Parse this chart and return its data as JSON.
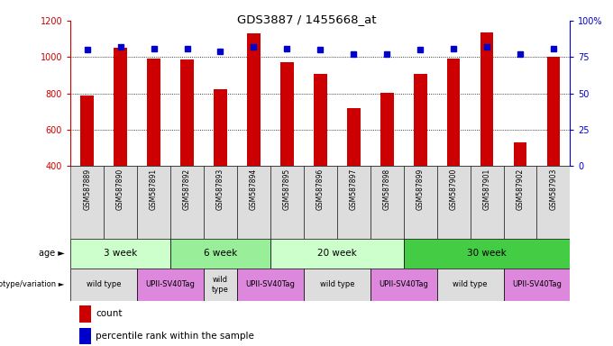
{
  "title": "GDS3887 / 1455668_at",
  "samples": [
    "GSM587889",
    "GSM587890",
    "GSM587891",
    "GSM587892",
    "GSM587893",
    "GSM587894",
    "GSM587895",
    "GSM587896",
    "GSM587897",
    "GSM587898",
    "GSM587899",
    "GSM587900",
    "GSM587901",
    "GSM587902",
    "GSM587903"
  ],
  "counts": [
    790,
    1050,
    990,
    985,
    825,
    1130,
    970,
    910,
    720,
    805,
    910,
    990,
    1135,
    530,
    1000
  ],
  "percentile_ranks": [
    80,
    82,
    81,
    81,
    79,
    82,
    81,
    80,
    77,
    77,
    80,
    81,
    82,
    77,
    81
  ],
  "ylim_left": [
    400,
    1200
  ],
  "ylim_right": [
    0,
    100
  ],
  "yticks_left": [
    400,
    600,
    800,
    1000,
    1200
  ],
  "yticks_right": [
    0,
    25,
    50,
    75,
    100
  ],
  "ytick_labels_right": [
    "0",
    "25",
    "50",
    "75",
    "100%"
  ],
  "bar_color": "#CC0000",
  "dot_color": "#0000CC",
  "age_groups": [
    {
      "label": "3 week",
      "start": 0,
      "end": 3,
      "color": "#CCFFCC"
    },
    {
      "label": "6 week",
      "start": 3,
      "end": 6,
      "color": "#99EE99"
    },
    {
      "label": "20 week",
      "start": 6,
      "end": 10,
      "color": "#CCFFCC"
    },
    {
      "label": "30 week",
      "start": 10,
      "end": 15,
      "color": "#44CC44"
    }
  ],
  "genotype_groups": [
    {
      "label": "wild type",
      "start": 0,
      "end": 2,
      "color": "#DDDDDD"
    },
    {
      "label": "UPII-SV40Tag",
      "start": 2,
      "end": 4,
      "color": "#DD88DD"
    },
    {
      "label": "wild\ntype",
      "start": 4,
      "end": 5,
      "color": "#DDDDDD"
    },
    {
      "label": "UPII-SV40Tag",
      "start": 5,
      "end": 7,
      "color": "#DD88DD"
    },
    {
      "label": "wild type",
      "start": 7,
      "end": 9,
      "color": "#DDDDDD"
    },
    {
      "label": "UPII-SV40Tag",
      "start": 9,
      "end": 11,
      "color": "#DD88DD"
    },
    {
      "label": "wild type",
      "start": 11,
      "end": 13,
      "color": "#DDDDDD"
    },
    {
      "label": "UPII-SV40Tag",
      "start": 13,
      "end": 15,
      "color": "#DD88DD"
    }
  ],
  "legend_count_label": "count",
  "legend_percentile_label": "percentile rank within the sample",
  "age_label": "age",
  "genotype_label": "genotype/variation",
  "grid_color": "#000000",
  "axis_color_left": "#CC0000",
  "axis_color_right": "#0000CC",
  "bar_bottom": 400,
  "sample_row_color": "#DDDDDD"
}
